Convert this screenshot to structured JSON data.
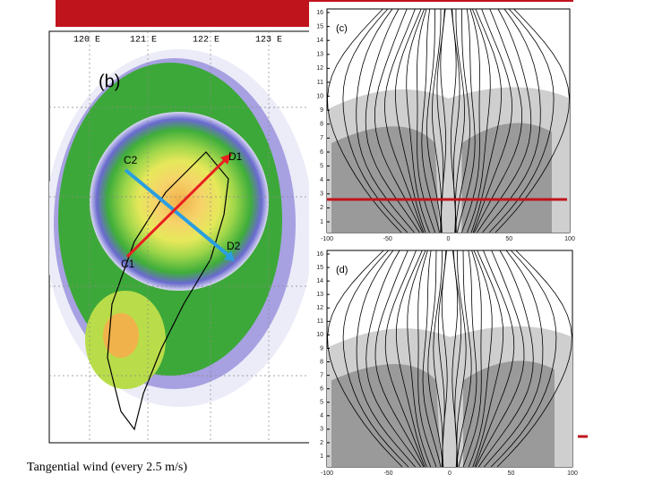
{
  "map": {
    "lon_labels": [
      "120 E",
      "121 E",
      "122 E",
      "123 E"
    ],
    "panel_label": "(b)",
    "points": [
      {
        "label": "C2"
      },
      {
        "label": "D1"
      },
      {
        "label": "D2"
      },
      {
        "label": "C1"
      }
    ]
  },
  "panels": [
    {
      "label": "(c)",
      "y_ticks": [
        "16",
        "15",
        "14",
        "13",
        "12",
        "11",
        "10",
        "9",
        "8",
        "7",
        "6",
        "5",
        "4",
        "3",
        "2",
        "1"
      ],
      "x_ticks": [
        "-100",
        "-50",
        "0",
        "50",
        "100"
      ]
    },
    {
      "label": "(d)",
      "y_ticks": [
        "16",
        "15",
        "14",
        "13",
        "12",
        "11",
        "10",
        "9",
        "8",
        "7",
        "6",
        "5",
        "4",
        "3",
        "2",
        "1"
      ],
      "x_ticks": [
        "-100",
        "-50",
        "0",
        "50",
        "100"
      ]
    }
  ],
  "caption": "Tangential wind (every 2.5 m/s)"
}
